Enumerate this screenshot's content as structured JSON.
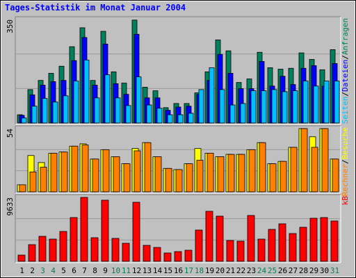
{
  "chart_data": [
    {
      "type": "bar",
      "title": "Tages-Statistik im Monat Januar 2004",
      "categories": [
        "1",
        "2",
        "3",
        "4",
        "5",
        "6",
        "7",
        "8",
        "9",
        "10",
        "11",
        "12",
        "13",
        "14",
        "15",
        "16",
        "17",
        "18",
        "19",
        "20",
        "21",
        "22",
        "23",
        "24",
        "25",
        "26",
        "27",
        "28",
        "29",
        "30",
        "31"
      ],
      "category_colors": [
        "#000000",
        "#000000",
        "#00805c",
        "#00805c",
        "#000000",
        "#000000",
        "#000000",
        "#000000",
        "#000000",
        "#00805c",
        "#00805c",
        "#000000",
        "#000000",
        "#000000",
        "#000000",
        "#000000",
        "#00805c",
        "#00805c",
        "#000000",
        "#000000",
        "#000000",
        "#000000",
        "#000000",
        "#00805c",
        "#00805c",
        "#000000",
        "#000000",
        "#000000",
        "#000000",
        "#000000",
        "#00805c"
      ],
      "legend_separator": "/",
      "ylim": [
        0,
        350
      ],
      "yticks": [
        350
      ],
      "series": [
        {
          "name": "Anfragen",
          "color": "#00805c",
          "values": [
            28,
            113,
            144,
            168,
            192,
            258,
            322,
            144,
            310,
            173,
            135,
            348,
            121,
            109,
            52,
            66,
            66,
            102,
            173,
            281,
            244,
            137,
            149,
            239,
            187,
            182,
            185,
            237,
            215,
            180,
            248
          ]
        },
        {
          "name": "Dateien",
          "color": "#0000ff",
          "values": [
            26,
            95,
            128,
            140,
            144,
            211,
            289,
            128,
            267,
            133,
            97,
            300,
            85,
            85,
            43,
            54,
            57,
            97,
            144,
            232,
            168,
            116,
            116,
            208,
            125,
            158,
            130,
            185,
            194,
            125,
            201
          ]
        },
        {
          "name": "Seiten",
          "color": "#00c0ff",
          "values": [
            17,
            57,
            83,
            71,
            92,
            142,
            213,
            85,
            163,
            85,
            59,
            156,
            61,
            50,
            28,
            28,
            33,
            113,
            187,
            113,
            61,
            66,
            109,
            109,
            113,
            106,
            109,
            142,
            125,
            142,
            142
          ]
        }
      ]
    },
    {
      "type": "bar",
      "ylim": [
        0,
        54
      ],
      "yticks": [
        54
      ],
      "series": [
        {
          "name": "Besuche",
          "color": "#ffff00",
          "values": [
            6,
            31,
            25,
            33,
            34,
            39,
            41,
            28,
            36,
            30,
            24,
            37,
            42,
            30,
            20,
            19,
            24,
            37,
            33,
            30,
            32,
            32,
            36,
            42,
            24,
            26,
            38,
            54,
            47,
            54,
            28
          ]
        },
        {
          "name": "Rechner",
          "color": "#ff8000",
          "values": [
            6,
            17,
            21,
            33,
            34,
            39,
            40,
            28,
            36,
            30,
            24,
            35,
            42,
            30,
            20,
            19,
            24,
            27,
            33,
            30,
            32,
            32,
            36,
            42,
            24,
            26,
            38,
            54,
            38,
            54,
            28
          ]
        }
      ]
    },
    {
      "type": "bar",
      "ylim": [
        0,
        9633
      ],
      "yticks": [
        9633
      ],
      "series": [
        {
          "name": "kB",
          "color": "#ff0000",
          "values": [
            942,
            2513,
            3769,
            3350,
            4502,
            6597,
            9633,
            3560,
            9214,
            3455,
            2722,
            8900,
            2408,
            2094,
            1256,
            1466,
            1675,
            4712,
            7539,
            6806,
            3141,
            3037,
            6911,
            3350,
            4817,
            5654,
            4188,
            5131,
            6492,
            6597,
            6073
          ]
        }
      ]
    }
  ]
}
